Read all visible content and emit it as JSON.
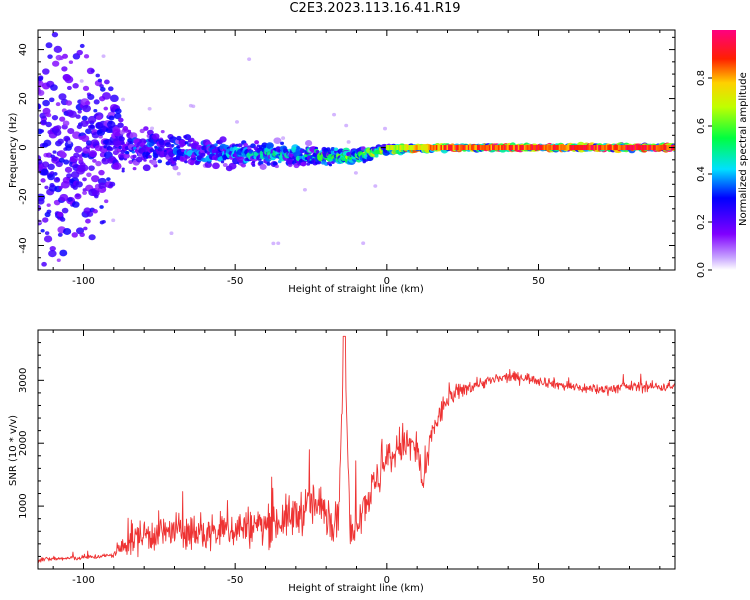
{
  "title": "C2E3.2023.113.16.41.R19",
  "colorbar": {
    "label": "Normalized spectral amplitude",
    "ticks": [
      "0.0",
      "0.2",
      "0.4",
      "0.6",
      "0.8"
    ],
    "tick_values": [
      0.0,
      0.2,
      0.4,
      0.6,
      0.8
    ]
  },
  "chart_data": [
    {
      "type": "heatmap",
      "xlabel": "Height of straight line (km)",
      "ylabel": "Frequency (Hz)",
      "xlim": [
        -115,
        95
      ],
      "ylim": [
        -50,
        48
      ],
      "xticks": [
        -100,
        -50,
        0,
        50
      ],
      "xtick_labels": [
        "-100",
        "-50",
        "0",
        "50"
      ],
      "yticks": [
        -40,
        -20,
        0,
        20,
        40
      ],
      "ytick_labels": [
        "-40",
        "-20",
        "0",
        "20",
        "40"
      ],
      "colorscale": "rainbow (purple low → red/magenta high)",
      "description_points": [
        {
          "height_km": -100,
          "peak_freq_hz": 0,
          "spread_hz": 48,
          "amplitude": 0.15
        },
        {
          "height_km": -85,
          "peak_freq_hz": 0,
          "spread_hz": 8,
          "amplitude": 0.3
        },
        {
          "height_km": -60,
          "peak_freq_hz": -2,
          "spread_hz": 6,
          "amplitude": 0.35
        },
        {
          "height_km": -30,
          "peak_freq_hz": -3,
          "spread_hz": 4,
          "amplitude": 0.45
        },
        {
          "height_km": -12,
          "peak_freq_hz": -4,
          "spread_hz": 3,
          "amplitude": 0.55
        },
        {
          "height_km": 0,
          "peak_freq_hz": -1,
          "spread_hz": 1.5,
          "amplitude": 0.7
        },
        {
          "height_km": 20,
          "peak_freq_hz": 0,
          "spread_hz": 1,
          "amplitude": 0.9
        },
        {
          "height_km": 90,
          "peak_freq_hz": 0,
          "spread_hz": 1,
          "amplitude": 0.95
        }
      ]
    },
    {
      "type": "line",
      "xlabel": "Height of straight line (km)",
      "ylabel": "SNR (10 * v/v)",
      "xlim": [
        -115,
        95
      ],
      "ylim": [
        0,
        3800
      ],
      "xticks": [
        -100,
        -50,
        0,
        50
      ],
      "xtick_labels": [
        "-100",
        "-50",
        "0",
        "50"
      ],
      "yticks": [
        1000,
        2000,
        3000
      ],
      "ytick_labels": [
        "1000",
        "2000",
        "3000"
      ],
      "color": "#ee3333",
      "x": [
        -115,
        -100,
        -90,
        -85,
        -80,
        -70,
        -60,
        -50,
        -40,
        -30,
        -25,
        -20,
        -16,
        -14,
        -12,
        -10,
        -5,
        0,
        5,
        10,
        12,
        15,
        20,
        25,
        30,
        35,
        40,
        45,
        50,
        60,
        70,
        80,
        90,
        95
      ],
      "y": [
        150,
        180,
        220,
        450,
        550,
        600,
        550,
        650,
        700,
        850,
        1050,
        900,
        800,
        3700,
        400,
        800,
        1250,
        1700,
        2000,
        1900,
        1300,
        2200,
        2700,
        2850,
        2950,
        3000,
        3050,
        3050,
        3000,
        2900,
        2850,
        2900,
        2900,
        2900
      ],
      "noise_amplitude": [
        60,
        60,
        60,
        400,
        450,
        450,
        450,
        500,
        500,
        550,
        600,
        600,
        600,
        0,
        300,
        500,
        500,
        500,
        500,
        650,
        300,
        400,
        250,
        200,
        150,
        150,
        130,
        130,
        130,
        130,
        130,
        130,
        130,
        130
      ]
    }
  ]
}
